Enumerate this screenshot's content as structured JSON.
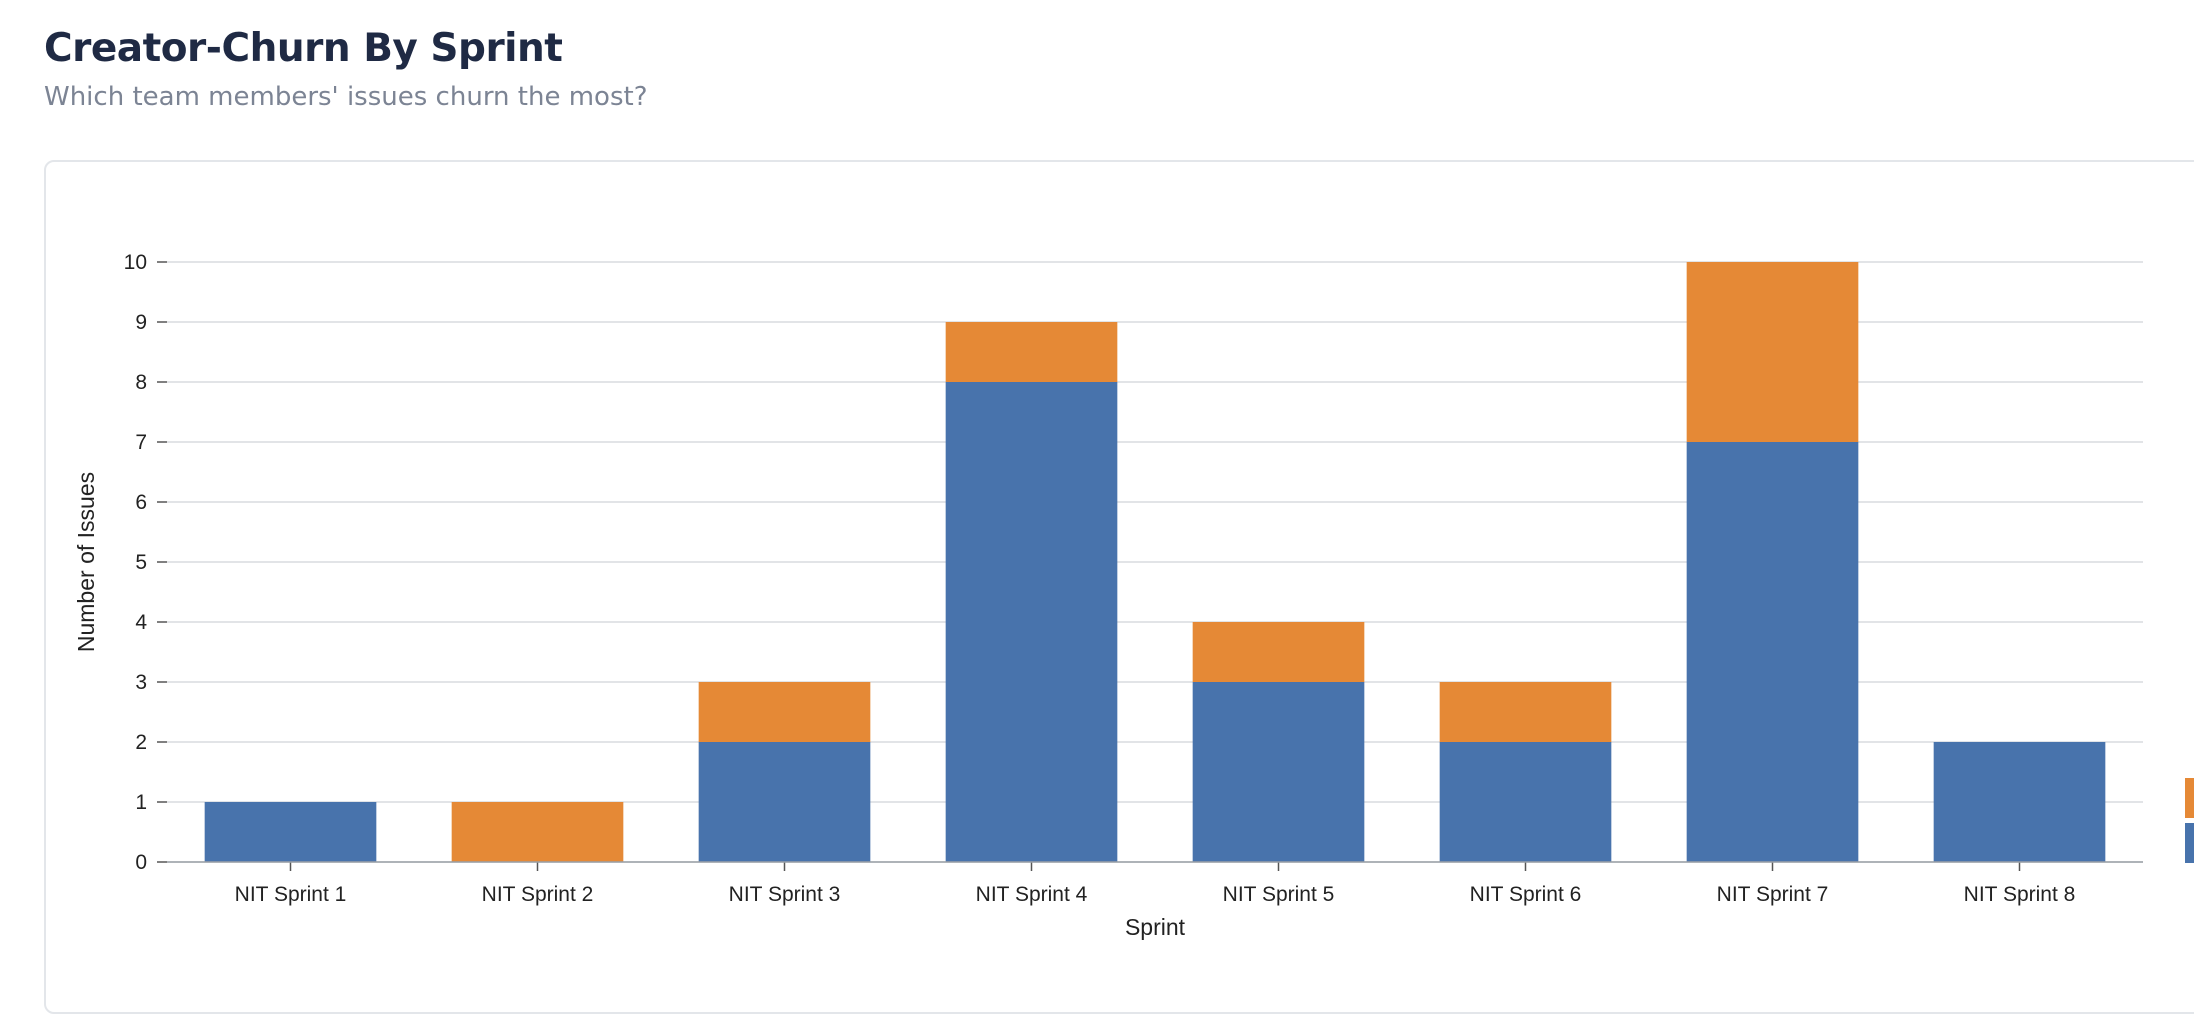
{
  "header": {
    "title": "Creator-Churn By Sprint",
    "subtitle": "Which team members' issues churn the most?"
  },
  "colors": {
    "series_blue": "#4873ac",
    "series_orange": "#e58936",
    "grid": "#d9dbdf",
    "axis": "#9aa0a6"
  },
  "chart_data": {
    "type": "bar",
    "stacked": true,
    "title": "",
    "xlabel": "Sprint",
    "ylabel": "Number of Issues",
    "categories": [
      "NIT Sprint 1",
      "NIT Sprint 2",
      "NIT Sprint 3",
      "NIT Sprint 4",
      "NIT Sprint 5",
      "NIT Sprint 6",
      "NIT Sprint 7",
      "NIT Sprint 8"
    ],
    "series": [
      {
        "color": "#4873ac",
        "values": [
          1,
          0,
          2,
          8,
          3,
          2,
          7,
          2
        ]
      },
      {
        "color": "#e58936",
        "values": [
          0,
          1,
          1,
          1,
          1,
          1,
          3,
          0
        ]
      }
    ],
    "ylim": [
      0,
      10
    ],
    "yticks": [
      0,
      1,
      2,
      3,
      4,
      5,
      6,
      7,
      8,
      9,
      10
    ],
    "grid": true,
    "legend": "right, partially cut off"
  }
}
